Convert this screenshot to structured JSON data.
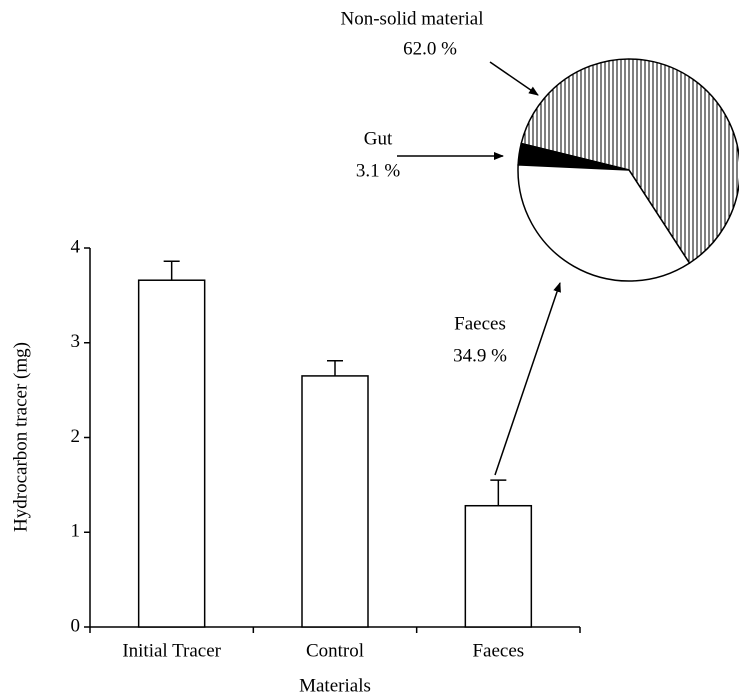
{
  "chart_data": [
    {
      "type": "bar",
      "categories": [
        "Initial Tracer",
        "Control",
        "Faeces"
      ],
      "values": [
        3.66,
        2.65,
        1.28
      ],
      "errors": [
        0.2,
        0.16,
        0.27
      ],
      "color": "#ffffff",
      "ylim": [
        0,
        4
      ],
      "yticks": [
        0,
        1,
        2,
        3,
        4
      ],
      "xlabel": "Materials",
      "ylabel": "Hydrocarbon tracer (mg)"
    },
    {
      "type": "pie",
      "categories": [
        "Non-solid material",
        "Gut",
        "Faeces"
      ],
      "values": [
        62.0,
        3.1,
        34.9
      ],
      "value_labels": [
        "62.0 %",
        "3.1 %",
        "34.9 %"
      ]
    }
  ]
}
